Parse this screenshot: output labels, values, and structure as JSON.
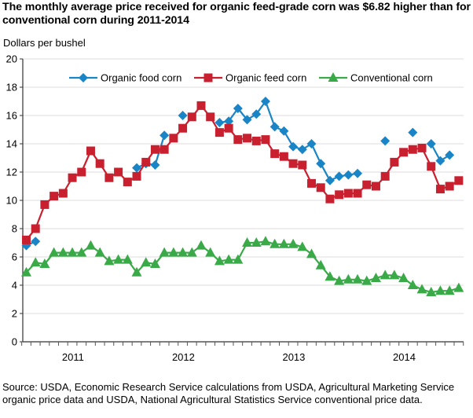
{
  "chart_data": {
    "type": "line",
    "title": "The monthly average price received for organic feed-grade corn was $6.82 higher than for conventional corn during 2011-2014",
    "ylabel": "Dollars per bushel",
    "xlabel": "",
    "ylim": [
      0,
      20
    ],
    "yticks": [
      "0",
      "2",
      "4",
      "6",
      "8",
      "10",
      "12",
      "14",
      "16",
      "18",
      "20"
    ],
    "xtick_labels": [
      "2011",
      "2012",
      "2013",
      "2014"
    ],
    "x_period": "Monthly, Jan 2011 - Dec 2014",
    "grid": true,
    "legend_position": "top",
    "series": [
      {
        "name": "Organic food corn",
        "color": "#1a85c6",
        "marker": "diamond",
        "values": [
          6.8,
          7.1,
          null,
          null,
          null,
          null,
          null,
          null,
          null,
          null,
          null,
          null,
          12.3,
          12.6,
          12.5,
          14.6,
          null,
          16.0,
          null,
          null,
          null,
          15.5,
          15.6,
          16.5,
          15.7,
          16.1,
          17.0,
          15.2,
          14.9,
          13.8,
          13.6,
          14.0,
          12.6,
          11.4,
          11.7,
          11.8,
          11.9,
          null,
          null,
          14.2,
          null,
          null,
          14.8,
          null,
          14.0,
          12.8,
          13.2,
          null
        ]
      },
      {
        "name": "Organic feed corn",
        "color": "#c8202f",
        "marker": "square",
        "values": [
          7.2,
          8.0,
          9.7,
          10.3,
          10.5,
          11.6,
          12.0,
          13.5,
          12.6,
          11.6,
          12.0,
          11.3,
          11.7,
          12.7,
          13.6,
          13.6,
          14.4,
          15.1,
          15.9,
          16.7,
          15.9,
          14.8,
          15.1,
          14.3,
          14.4,
          14.2,
          14.3,
          13.3,
          13.1,
          12.6,
          12.5,
          11.2,
          10.9,
          10.1,
          10.4,
          10.5,
          10.5,
          11.1,
          11.0,
          11.7,
          12.7,
          13.4,
          13.6,
          13.7,
          12.4,
          10.8,
          11.0,
          11.4
        ]
      },
      {
        "name": "Conventional corn",
        "color": "#3aaa48",
        "marker": "triangle",
        "values": [
          4.9,
          5.6,
          5.5,
          6.3,
          6.3,
          6.3,
          6.3,
          6.8,
          6.3,
          5.7,
          5.8,
          5.8,
          4.9,
          5.6,
          5.5,
          6.3,
          6.3,
          6.3,
          6.3,
          6.8,
          6.3,
          5.7,
          5.8,
          5.8,
          7.0,
          7.0,
          7.1,
          6.9,
          6.9,
          6.9,
          6.7,
          6.2,
          5.4,
          4.6,
          4.3,
          4.4,
          4.4,
          4.3,
          4.5,
          4.7,
          4.7,
          4.5,
          4.0,
          3.7,
          3.5,
          3.6,
          3.6,
          3.8
        ]
      }
    ],
    "source": "Source: USDA, Economic Research Service calculations from USDA, Agricultural Marketing Service organic price data and USDA, National Agricultural Statistics Service conventional price data."
  }
}
